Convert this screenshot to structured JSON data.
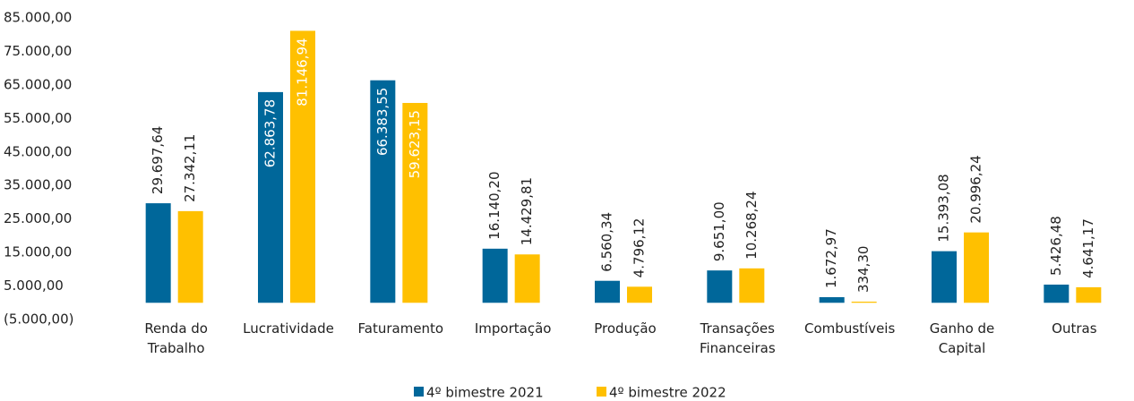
{
  "chart_data": {
    "type": "bar",
    "categories": [
      "Renda do Trabalho",
      "Lucratividade",
      "Faturamento",
      "Importação",
      "Produção",
      "Transações Financeiras",
      "Combustíveis",
      "Ganho de Capital",
      "Outras"
    ],
    "series": [
      {
        "name": "4º bimestre 2021",
        "color": "#00679a",
        "values": [
          29697.64,
          62863.78,
          66383.55,
          16140.2,
          6560.34,
          9651.0,
          1672.97,
          15393.08,
          5426.48
        ],
        "value_labels": [
          "29.697,64",
          "62.863,78",
          "66.383,55",
          "16.140,20",
          "6.560,34",
          "9.651,00",
          "1.672,97",
          "15.393,08",
          "5.426,48"
        ]
      },
      {
        "name": "4º bimestre 2022",
        "color": "#ffc000",
        "values": [
          27342.11,
          81146.94,
          59623.15,
          14429.81,
          4796.12,
          10268.24,
          334.3,
          20996.24,
          4641.17
        ],
        "value_labels": [
          "27.342,11",
          "81.146,94",
          "59.623,15",
          "14.429,81",
          "4.796,12",
          "10.268,24",
          "334,30",
          "20.996,24",
          "4.641,17"
        ]
      }
    ],
    "ylim": [
      -5000,
      85000
    ],
    "yticks": [
      {
        "value": -5000,
        "label": "(5.000,00)"
      },
      {
        "value": 5000,
        "label": "5.000,00"
      },
      {
        "value": 15000,
        "label": "15.000,00"
      },
      {
        "value": 25000,
        "label": "25.000,00"
      },
      {
        "value": 35000,
        "label": "35.000,00"
      },
      {
        "value": 45000,
        "label": "45.000,00"
      },
      {
        "value": 55000,
        "label": "55.000,00"
      },
      {
        "value": 65000,
        "label": "65.000,00"
      },
      {
        "value": 75000,
        "label": "75.000,00"
      },
      {
        "value": 85000,
        "label": "85.000,00"
      }
    ],
    "grid": false,
    "legend": "bottom"
  }
}
